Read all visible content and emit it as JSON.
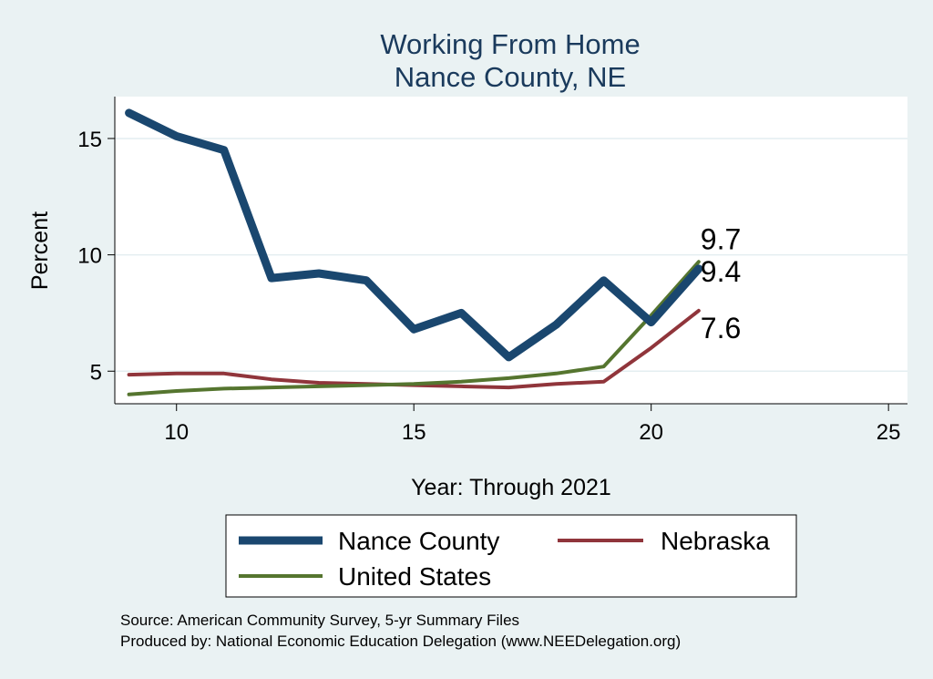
{
  "chart_data": {
    "type": "line",
    "title": [
      "Working From Home",
      "Nance County, NE"
    ],
    "xlabel": "Year: Through 2021",
    "ylabel": "Percent",
    "xlim": [
      8.7,
      25.4
    ],
    "ylim": [
      3.6,
      16.8
    ],
    "xticks": [
      10,
      15,
      20,
      25
    ],
    "yticks": [
      5,
      10,
      15
    ],
    "grid": true,
    "legend_position": "bottom",
    "series": [
      {
        "name": "Nance County",
        "color": "#1a476f",
        "width": 9,
        "x": [
          9,
          10,
          11,
          12,
          13,
          14,
          15,
          16,
          17,
          18,
          19,
          20,
          21
        ],
        "y": [
          16.1,
          15.1,
          14.5,
          9.0,
          9.2,
          8.9,
          6.8,
          7.5,
          5.6,
          7.0,
          8.9,
          7.1,
          9.4
        ],
        "end_label": "9.4"
      },
      {
        "name": "Nebraska",
        "color": "#90353b",
        "width": 4,
        "x": [
          9,
          10,
          11,
          12,
          13,
          14,
          15,
          16,
          17,
          18,
          19,
          20,
          21
        ],
        "y": [
          4.85,
          4.9,
          4.9,
          4.65,
          4.5,
          4.45,
          4.4,
          4.35,
          4.3,
          4.45,
          4.55,
          6.0,
          7.6
        ],
        "end_label": "7.6"
      },
      {
        "name": "United States",
        "color": "#55752f",
        "width": 4,
        "x": [
          9,
          10,
          11,
          12,
          13,
          14,
          15,
          16,
          17,
          18,
          19,
          20,
          21
        ],
        "y": [
          4.0,
          4.15,
          4.25,
          4.3,
          4.35,
          4.4,
          4.45,
          4.55,
          4.7,
          4.9,
          5.2,
          7.4,
          9.7
        ],
        "end_label": "9.7"
      }
    ],
    "notes": [
      "Source: American Community Survey, 5-yr Summary Files",
      "Produced by: National Economic Education Delegation (www.NEEDelegation.org)"
    ]
  }
}
